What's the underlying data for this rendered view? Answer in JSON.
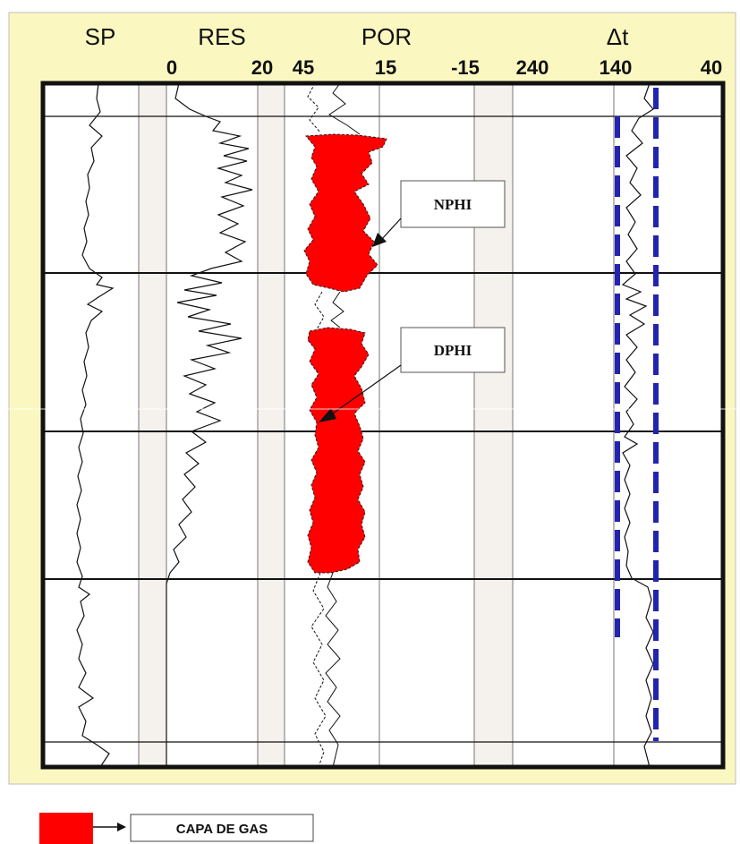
{
  "header": {
    "track_titles": [
      {
        "key": "sp",
        "label": "SP"
      },
      {
        "key": "res",
        "label": "RES"
      },
      {
        "key": "por",
        "label": "POR"
      },
      {
        "key": "dt",
        "label": "Δt"
      }
    ],
    "scale_labels": [
      {
        "key": "res-min",
        "label": "0"
      },
      {
        "key": "res-max",
        "label": "20"
      },
      {
        "key": "por-left",
        "label": "45"
      },
      {
        "key": "por-mid",
        "label": "15"
      },
      {
        "key": "por-right",
        "label": "-15"
      },
      {
        "key": "dt-left",
        "label": "240"
      },
      {
        "key": "dt-mid",
        "label": "140"
      },
      {
        "key": "dt-right",
        "label": "40"
      }
    ]
  },
  "callouts": {
    "nphi": "NPHI",
    "dphi": "DPHI"
  },
  "legend": {
    "label": "CAPA DE GAS",
    "swatch_color": "#ff0000"
  },
  "colors": {
    "background": "#fbf7c0",
    "gas_fill": "#ff0000",
    "dt_baseline": "#2323b0",
    "track_separator": "#f6f1ea"
  }
}
